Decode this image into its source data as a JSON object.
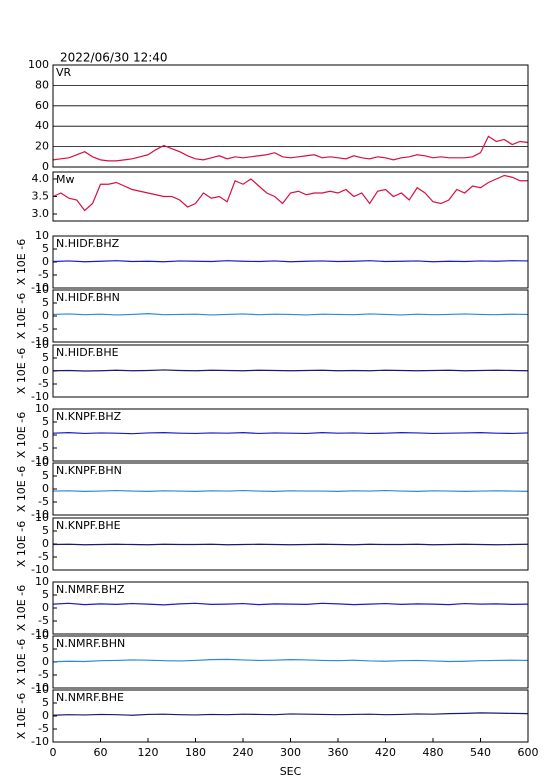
{
  "chart_data": [
    {
      "type": "line",
      "title": "2022/06/30 12:40",
      "xlim": [
        0,
        600
      ],
      "ylim": [
        0,
        100
      ],
      "yticks": [
        0,
        20,
        40,
        60,
        80,
        100
      ],
      "grid": true,
      "x": [
        0,
        10,
        20,
        30,
        40,
        50,
        60,
        70,
        80,
        90,
        100,
        110,
        120,
        130,
        140,
        150,
        160,
        170,
        180,
        190,
        200,
        210,
        220,
        230,
        240,
        250,
        260,
        270,
        280,
        290,
        300,
        310,
        320,
        330,
        340,
        350,
        360,
        370,
        380,
        390,
        400,
        410,
        420,
        430,
        440,
        450,
        460,
        470,
        480,
        490,
        500,
        510,
        520,
        530,
        540,
        550,
        560,
        570,
        580,
        590,
        600
      ],
      "series": [
        {
          "name": "VR",
          "color": "#d81040",
          "values": [
            7,
            8,
            9,
            12,
            15,
            10,
            7,
            6,
            6,
            7,
            8,
            10,
            12,
            17,
            21,
            18,
            15,
            11,
            8,
            7,
            9,
            11,
            8,
            10,
            9,
            10,
            11,
            12,
            14,
            10,
            9,
            10,
            11,
            12,
            9,
            10,
            9,
            8,
            11,
            9,
            8,
            10,
            9,
            7,
            9,
            10,
            12,
            11,
            9,
            10,
            9,
            9,
            9,
            10,
            14,
            30,
            25,
            27,
            22,
            25,
            24
          ]
        }
      ]
    },
    {
      "type": "line",
      "xlim": [
        0,
        600
      ],
      "ylim": [
        2.8,
        4.2
      ],
      "yticks": [
        {
          "value": 3,
          "label": "3.0"
        },
        3.5,
        {
          "value": 4,
          "label": "4.0"
        }
      ],
      "grid": false,
      "x": [
        0,
        10,
        20,
        30,
        40,
        50,
        60,
        70,
        80,
        90,
        100,
        110,
        120,
        130,
        140,
        150,
        160,
        170,
        180,
        190,
        200,
        210,
        220,
        230,
        240,
        250,
        260,
        270,
        280,
        290,
        300,
        310,
        320,
        330,
        340,
        350,
        360,
        370,
        380,
        390,
        400,
        410,
        420,
        430,
        440,
        450,
        460,
        470,
        480,
        490,
        500,
        510,
        520,
        530,
        540,
        550,
        560,
        570,
        580,
        590,
        600
      ],
      "series": [
        {
          "name": "Mw",
          "color": "#d81040",
          "values": [
            3.5,
            3.6,
            3.45,
            3.4,
            3.1,
            3.3,
            3.85,
            3.85,
            3.9,
            3.8,
            3.7,
            3.65,
            3.6,
            3.55,
            3.5,
            3.5,
            3.4,
            3.2,
            3.3,
            3.6,
            3.45,
            3.5,
            3.35,
            3.95,
            3.85,
            4.0,
            3.8,
            3.6,
            3.5,
            3.3,
            3.6,
            3.65,
            3.55,
            3.6,
            3.6,
            3.65,
            3.6,
            3.7,
            3.5,
            3.6,
            3.3,
            3.65,
            3.7,
            3.5,
            3.6,
            3.4,
            3.75,
            3.6,
            3.35,
            3.3,
            3.4,
            3.7,
            3.6,
            3.8,
            3.75,
            3.9,
            4.0,
            4.1,
            4.05,
            3.95,
            3.95
          ]
        }
      ]
    },
    {
      "type": "line",
      "ylabel": "X 10E -6",
      "xlim": [
        0,
        600
      ],
      "ylim": [
        -10,
        10
      ],
      "yticks": [
        -10,
        -5,
        0,
        5,
        10
      ],
      "grid": false,
      "x": [
        0,
        20,
        40,
        60,
        80,
        100,
        120,
        140,
        160,
        180,
        200,
        220,
        240,
        260,
        280,
        300,
        320,
        340,
        360,
        380,
        400,
        420,
        440,
        460,
        480,
        500,
        520,
        540,
        560,
        580,
        600
      ],
      "series": [
        {
          "name": "N.HIDF.BHZ",
          "color": "#1a1acc",
          "values": [
            0.2,
            0.4,
            0.1,
            0.3,
            0.5,
            0.2,
            0.3,
            0.1,
            0.4,
            0.3,
            0.2,
            0.5,
            0.3,
            0.2,
            0.4,
            0.1,
            0.3,
            0.4,
            0.2,
            0.3,
            0.5,
            0.2,
            0.3,
            0.4,
            0.1,
            0.3,
            0.2,
            0.4,
            0.3,
            0.5,
            0.4
          ]
        }
      ]
    },
    {
      "type": "line",
      "ylabel": "X 10E -6",
      "xlim": [
        0,
        600
      ],
      "ylim": [
        -10,
        10
      ],
      "yticks": [
        -10,
        -5,
        0,
        5,
        10
      ],
      "grid": false,
      "x": [
        0,
        20,
        40,
        60,
        80,
        100,
        120,
        140,
        160,
        180,
        200,
        220,
        240,
        260,
        280,
        300,
        320,
        340,
        360,
        380,
        400,
        420,
        440,
        460,
        480,
        500,
        520,
        540,
        560,
        580,
        600
      ],
      "series": [
        {
          "name": "N.HIDF.BHN",
          "color": "#2a8ad8",
          "values": [
            0.6,
            0.8,
            0.5,
            0.7,
            0.4,
            0.6,
            0.9,
            0.5,
            0.6,
            0.7,
            0.4,
            0.6,
            0.8,
            0.5,
            0.7,
            0.6,
            0.4,
            0.7,
            0.6,
            0.5,
            0.8,
            0.6,
            0.4,
            0.7,
            0.5,
            0.6,
            0.8,
            0.6,
            0.5,
            0.7,
            0.6
          ]
        }
      ]
    },
    {
      "type": "line",
      "ylabel": "X 10E -6",
      "xlim": [
        0,
        600
      ],
      "ylim": [
        -10,
        10
      ],
      "yticks": [
        -10,
        -5,
        0,
        5,
        10
      ],
      "grid": false,
      "x": [
        0,
        20,
        40,
        60,
        80,
        100,
        120,
        140,
        160,
        180,
        200,
        220,
        240,
        260,
        280,
        300,
        320,
        340,
        360,
        380,
        400,
        420,
        440,
        460,
        480,
        500,
        520,
        540,
        560,
        580,
        600
      ],
      "series": [
        {
          "name": "N.HIDF.BHE",
          "color": "#1a1a6e",
          "values": [
            0.1,
            0.2,
            0.0,
            0.1,
            0.3,
            0.1,
            0.2,
            0.4,
            0.2,
            0.1,
            0.3,
            0.2,
            0.1,
            0.3,
            0.2,
            0.1,
            0.2,
            0.3,
            0.1,
            0.2,
            0.1,
            0.3,
            0.2,
            0.1,
            0.2,
            0.3,
            0.1,
            0.2,
            0.3,
            0.2,
            0.1
          ]
        }
      ]
    },
    {
      "type": "line",
      "ylabel": "X 10E -6",
      "xlim": [
        0,
        600
      ],
      "ylim": [
        -10,
        10
      ],
      "yticks": [
        -10,
        -5,
        0,
        5,
        10
      ],
      "grid": false,
      "x": [
        0,
        20,
        40,
        60,
        80,
        100,
        120,
        140,
        160,
        180,
        200,
        220,
        240,
        260,
        280,
        300,
        320,
        340,
        360,
        380,
        400,
        420,
        440,
        460,
        480,
        500,
        520,
        540,
        560,
        580,
        600
      ],
      "series": [
        {
          "name": "N.KNPF.BHZ",
          "color": "#1a1acc",
          "values": [
            0.7,
            0.9,
            0.6,
            0.8,
            0.7,
            0.5,
            0.8,
            0.9,
            0.7,
            0.6,
            0.8,
            0.7,
            0.9,
            0.6,
            0.8,
            0.7,
            0.6,
            0.9,
            0.7,
            0.8,
            0.6,
            0.7,
            0.9,
            0.8,
            0.6,
            0.7,
            0.8,
            0.9,
            0.7,
            0.6,
            0.8
          ]
        }
      ]
    },
    {
      "type": "line",
      "ylabel": "X 10E -6",
      "xlim": [
        0,
        600
      ],
      "ylim": [
        -10,
        10
      ],
      "yticks": [
        -10,
        -5,
        0,
        5,
        10
      ],
      "grid": false,
      "x": [
        0,
        20,
        40,
        60,
        80,
        100,
        120,
        140,
        160,
        180,
        200,
        220,
        240,
        260,
        280,
        300,
        320,
        340,
        360,
        380,
        400,
        420,
        440,
        460,
        480,
        500,
        520,
        540,
        560,
        580,
        600
      ],
      "series": [
        {
          "name": "N.KNPF.BHN",
          "color": "#2a8ad8",
          "values": [
            -0.8,
            -0.7,
            -0.9,
            -0.8,
            -0.6,
            -0.8,
            -0.9,
            -0.7,
            -0.8,
            -0.9,
            -0.7,
            -0.8,
            -0.6,
            -0.8,
            -0.9,
            -0.7,
            -0.8,
            -0.8,
            -0.9,
            -0.7,
            -0.8,
            -0.6,
            -0.8,
            -0.9,
            -0.7,
            -0.8,
            -0.9,
            -0.8,
            -0.7,
            -0.8,
            -0.9
          ]
        }
      ]
    },
    {
      "type": "line",
      "ylabel": "X 10E -6",
      "xlim": [
        0,
        600
      ],
      "ylim": [
        -10,
        10
      ],
      "yticks": [
        -10,
        -5,
        0,
        5,
        10
      ],
      "grid": false,
      "x": [
        0,
        20,
        40,
        60,
        80,
        100,
        120,
        140,
        160,
        180,
        200,
        220,
        240,
        260,
        280,
        300,
        320,
        340,
        360,
        380,
        400,
        420,
        440,
        460,
        480,
        500,
        520,
        540,
        560,
        580,
        600
      ],
      "series": [
        {
          "name": "N.KNPF.BHE",
          "color": "#1a1a6e",
          "values": [
            -0.2,
            -0.1,
            -0.3,
            -0.2,
            -0.1,
            -0.2,
            -0.3,
            -0.1,
            -0.2,
            -0.2,
            -0.1,
            -0.3,
            -0.2,
            -0.1,
            -0.2,
            -0.3,
            -0.2,
            -0.1,
            -0.2,
            -0.3,
            -0.1,
            -0.2,
            -0.2,
            -0.1,
            -0.3,
            -0.2,
            -0.1,
            -0.2,
            -0.3,
            -0.2,
            -0.1
          ]
        }
      ]
    },
    {
      "type": "line",
      "ylabel": "X 10E -6",
      "xlim": [
        0,
        600
      ],
      "ylim": [
        -10,
        10
      ],
      "yticks": [
        -10,
        -5,
        0,
        5,
        10
      ],
      "grid": false,
      "x": [
        0,
        20,
        40,
        60,
        80,
        100,
        120,
        140,
        160,
        180,
        200,
        220,
        240,
        260,
        280,
        300,
        320,
        340,
        360,
        380,
        400,
        420,
        440,
        460,
        480,
        500,
        520,
        540,
        560,
        580,
        600
      ],
      "series": [
        {
          "name": "N.NMRF.BHZ",
          "color": "#1a1acc",
          "values": [
            1.5,
            1.8,
            1.3,
            1.6,
            1.4,
            1.7,
            1.5,
            1.2,
            1.6,
            1.8,
            1.4,
            1.5,
            1.7,
            1.3,
            1.6,
            1.5,
            1.4,
            1.8,
            1.6,
            1.3,
            1.5,
            1.7,
            1.4,
            1.6,
            1.5,
            1.3,
            1.7,
            1.5,
            1.6,
            1.4,
            1.5
          ]
        }
      ]
    },
    {
      "type": "line",
      "ylabel": "X 10E -6",
      "xlim": [
        0,
        600
      ],
      "ylim": [
        -10,
        10
      ],
      "yticks": [
        -10,
        -5,
        0,
        5,
        10
      ],
      "grid": false,
      "x": [
        0,
        20,
        40,
        60,
        80,
        100,
        120,
        140,
        160,
        180,
        200,
        220,
        240,
        260,
        280,
        300,
        320,
        340,
        360,
        380,
        400,
        420,
        440,
        460,
        480,
        500,
        520,
        540,
        560,
        580,
        600
      ],
      "series": [
        {
          "name": "N.NMRF.BHN",
          "color": "#2a8ad8",
          "values": [
            0.1,
            0.3,
            0.2,
            0.5,
            0.6,
            0.8,
            0.7,
            0.5,
            0.4,
            0.6,
            0.9,
            1.0,
            0.8,
            0.6,
            0.7,
            0.9,
            0.8,
            0.6,
            0.5,
            0.7,
            0.4,
            0.3,
            0.5,
            0.6,
            0.4,
            0.2,
            0.3,
            0.5,
            0.6,
            0.7,
            0.6
          ]
        }
      ]
    },
    {
      "type": "line",
      "ylabel": "X 10E -6",
      "xlim": [
        0,
        600
      ],
      "ylim": [
        -10,
        10
      ],
      "yticks": [
        -10,
        -5,
        0,
        5,
        10
      ],
      "grid": false,
      "xlabel": "SEC",
      "xticks": [
        0,
        60,
        120,
        180,
        240,
        300,
        360,
        420,
        480,
        540,
        600
      ],
      "x": [
        0,
        20,
        40,
        60,
        80,
        100,
        120,
        140,
        160,
        180,
        200,
        220,
        240,
        260,
        280,
        300,
        320,
        340,
        360,
        380,
        400,
        420,
        440,
        460,
        480,
        500,
        520,
        540,
        560,
        580,
        600
      ],
      "series": [
        {
          "name": "N.NMRF.BHE",
          "color": "#1a1a6e",
          "values": [
            0.3,
            0.5,
            0.4,
            0.6,
            0.5,
            0.3,
            0.6,
            0.7,
            0.5,
            0.4,
            0.6,
            0.5,
            0.7,
            0.6,
            0.5,
            0.8,
            0.7,
            0.6,
            0.5,
            0.6,
            0.7,
            0.5,
            0.6,
            0.8,
            0.7,
            0.9,
            1.0,
            1.2,
            1.1,
            1.0,
            0.9
          ]
        }
      ]
    }
  ]
}
